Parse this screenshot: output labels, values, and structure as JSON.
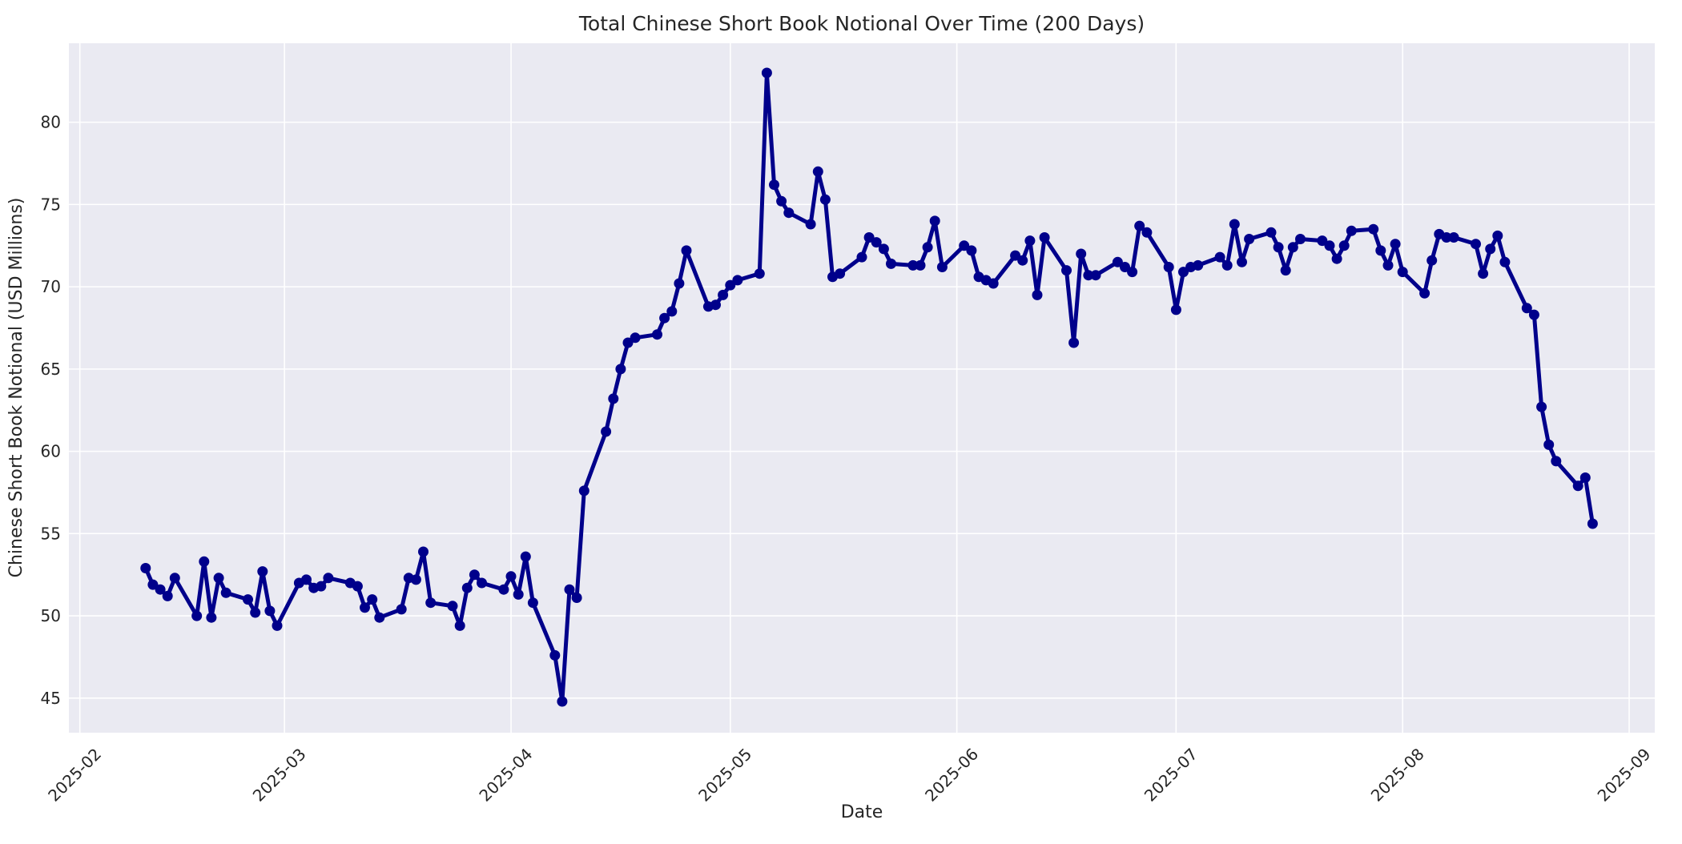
{
  "chart_data": {
    "type": "line",
    "title": "Total Chinese Short Book Notional Over Time (200 Days)",
    "xlabel": "Date",
    "ylabel": "Chinese Short Book Notional (USD Millions)",
    "x_tick_labels": [
      "2025-02",
      "2025-03",
      "2025-04",
      "2025-05",
      "2025-06",
      "2025-07",
      "2025-08",
      "2025-09"
    ],
    "y_ticks": [
      45,
      50,
      55,
      60,
      65,
      70,
      75,
      80
    ],
    "xlim": [
      "2025-01-30",
      "2025-09-04"
    ],
    "ylim": [
      42.9,
      84.8
    ],
    "grid": true,
    "legend_position": "none",
    "styles": {
      "fig_bg": "#ffffff",
      "plot_bg": "#eaeaf2",
      "grid_color": "#ffffff",
      "line_color": "#00008b",
      "marker_color": "#00008b",
      "text_color": "#262626"
    },
    "series": [
      {
        "points": [
          [
            "2025-02-10",
            52.9
          ],
          [
            "2025-02-11",
            51.9
          ],
          [
            "2025-02-12",
            51.6
          ],
          [
            "2025-02-13",
            51.2
          ],
          [
            "2025-02-14",
            52.3
          ],
          [
            "2025-02-17",
            50.0
          ],
          [
            "2025-02-18",
            53.3
          ],
          [
            "2025-02-19",
            49.9
          ],
          [
            "2025-02-20",
            52.3
          ],
          [
            "2025-02-21",
            51.4
          ],
          [
            "2025-02-24",
            51.0
          ],
          [
            "2025-02-25",
            50.2
          ],
          [
            "2025-02-26",
            52.7
          ],
          [
            "2025-02-27",
            50.3
          ],
          [
            "2025-02-28",
            49.4
          ],
          [
            "2025-03-03",
            52.0
          ],
          [
            "2025-03-04",
            52.2
          ],
          [
            "2025-03-05",
            51.7
          ],
          [
            "2025-03-06",
            51.8
          ],
          [
            "2025-03-07",
            52.3
          ],
          [
            "2025-03-10",
            52.0
          ],
          [
            "2025-03-11",
            51.8
          ],
          [
            "2025-03-12",
            50.5
          ],
          [
            "2025-03-13",
            51.0
          ],
          [
            "2025-03-14",
            49.9
          ],
          [
            "2025-03-17",
            50.4
          ],
          [
            "2025-03-18",
            52.3
          ],
          [
            "2025-03-19",
            52.2
          ],
          [
            "2025-03-20",
            53.9
          ],
          [
            "2025-03-21",
            50.8
          ],
          [
            "2025-03-24",
            50.6
          ],
          [
            "2025-03-25",
            49.4
          ],
          [
            "2025-03-26",
            51.7
          ],
          [
            "2025-03-27",
            52.5
          ],
          [
            "2025-03-28",
            52.0
          ],
          [
            "2025-03-31",
            51.6
          ],
          [
            "2025-04-01",
            52.4
          ],
          [
            "2025-04-02",
            51.3
          ],
          [
            "2025-04-03",
            53.6
          ],
          [
            "2025-04-04",
            50.8
          ],
          [
            "2025-04-07",
            47.6
          ],
          [
            "2025-04-08",
            44.8
          ],
          [
            "2025-04-09",
            51.6
          ],
          [
            "2025-04-10",
            51.1
          ],
          [
            "2025-04-11",
            57.6
          ],
          [
            "2025-04-14",
            61.2
          ],
          [
            "2025-04-15",
            63.2
          ],
          [
            "2025-04-16",
            65.0
          ],
          [
            "2025-04-17",
            66.6
          ],
          [
            "2025-04-18",
            66.9
          ],
          [
            "2025-04-21",
            67.1
          ],
          [
            "2025-04-22",
            68.1
          ],
          [
            "2025-04-23",
            68.5
          ],
          [
            "2025-04-24",
            70.2
          ],
          [
            "2025-04-25",
            72.2
          ],
          [
            "2025-04-28",
            68.8
          ],
          [
            "2025-04-29",
            68.9
          ],
          [
            "2025-04-30",
            69.5
          ],
          [
            "2025-05-01",
            70.1
          ],
          [
            "2025-05-02",
            70.4
          ],
          [
            "2025-05-05",
            70.8
          ],
          [
            "2025-05-06",
            83.0
          ],
          [
            "2025-05-07",
            76.2
          ],
          [
            "2025-05-08",
            75.2
          ],
          [
            "2025-05-09",
            74.5
          ],
          [
            "2025-05-12",
            73.8
          ],
          [
            "2025-05-13",
            77.0
          ],
          [
            "2025-05-14",
            75.3
          ],
          [
            "2025-05-15",
            70.6
          ],
          [
            "2025-05-16",
            70.8
          ],
          [
            "2025-05-19",
            71.8
          ],
          [
            "2025-05-20",
            73.0
          ],
          [
            "2025-05-21",
            72.7
          ],
          [
            "2025-05-22",
            72.3
          ],
          [
            "2025-05-23",
            71.4
          ],
          [
            "2025-05-26",
            71.3
          ],
          [
            "2025-05-27",
            71.3
          ],
          [
            "2025-05-28",
            72.4
          ],
          [
            "2025-05-29",
            74.0
          ],
          [
            "2025-05-30",
            71.2
          ],
          [
            "2025-06-02",
            72.5
          ],
          [
            "2025-06-03",
            72.2
          ],
          [
            "2025-06-04",
            70.6
          ],
          [
            "2025-06-05",
            70.4
          ],
          [
            "2025-06-06",
            70.2
          ],
          [
            "2025-06-09",
            71.9
          ],
          [
            "2025-06-10",
            71.6
          ],
          [
            "2025-06-11",
            72.8
          ],
          [
            "2025-06-12",
            69.5
          ],
          [
            "2025-06-13",
            73.0
          ],
          [
            "2025-06-16",
            71.0
          ],
          [
            "2025-06-17",
            66.6
          ],
          [
            "2025-06-18",
            72.0
          ],
          [
            "2025-06-19",
            70.7
          ],
          [
            "2025-06-20",
            70.7
          ],
          [
            "2025-06-23",
            71.5
          ],
          [
            "2025-06-24",
            71.2
          ],
          [
            "2025-06-25",
            70.9
          ],
          [
            "2025-06-26",
            73.7
          ],
          [
            "2025-06-27",
            73.3
          ],
          [
            "2025-06-30",
            71.2
          ],
          [
            "2025-07-01",
            68.6
          ],
          [
            "2025-07-02",
            70.9
          ],
          [
            "2025-07-03",
            71.2
          ],
          [
            "2025-07-04",
            71.3
          ],
          [
            "2025-07-07",
            71.8
          ],
          [
            "2025-07-08",
            71.3
          ],
          [
            "2025-07-09",
            73.8
          ],
          [
            "2025-07-10",
            71.5
          ],
          [
            "2025-07-11",
            72.9
          ],
          [
            "2025-07-14",
            73.3
          ],
          [
            "2025-07-15",
            72.4
          ],
          [
            "2025-07-16",
            71.0
          ],
          [
            "2025-07-17",
            72.4
          ],
          [
            "2025-07-18",
            72.9
          ],
          [
            "2025-07-21",
            72.8
          ],
          [
            "2025-07-22",
            72.5
          ],
          [
            "2025-07-23",
            71.7
          ],
          [
            "2025-07-24",
            72.5
          ],
          [
            "2025-07-25",
            73.4
          ],
          [
            "2025-07-28",
            73.5
          ],
          [
            "2025-07-29",
            72.2
          ],
          [
            "2025-07-30",
            71.3
          ],
          [
            "2025-07-31",
            72.6
          ],
          [
            "2025-08-01",
            70.9
          ],
          [
            "2025-08-04",
            69.6
          ],
          [
            "2025-08-05",
            71.6
          ],
          [
            "2025-08-06",
            73.2
          ],
          [
            "2025-08-07",
            73.0
          ],
          [
            "2025-08-08",
            73.0
          ],
          [
            "2025-08-11",
            72.6
          ],
          [
            "2025-08-12",
            70.8
          ],
          [
            "2025-08-13",
            72.3
          ],
          [
            "2025-08-14",
            73.1
          ],
          [
            "2025-08-15",
            71.5
          ],
          [
            "2025-08-18",
            68.7
          ],
          [
            "2025-08-19",
            68.3
          ],
          [
            "2025-08-20",
            62.7
          ],
          [
            "2025-08-21",
            60.4
          ],
          [
            "2025-08-22",
            59.4
          ],
          [
            "2025-08-25",
            57.9
          ],
          [
            "2025-08-26",
            58.4
          ],
          [
            "2025-08-27",
            55.6
          ]
        ]
      }
    ]
  }
}
